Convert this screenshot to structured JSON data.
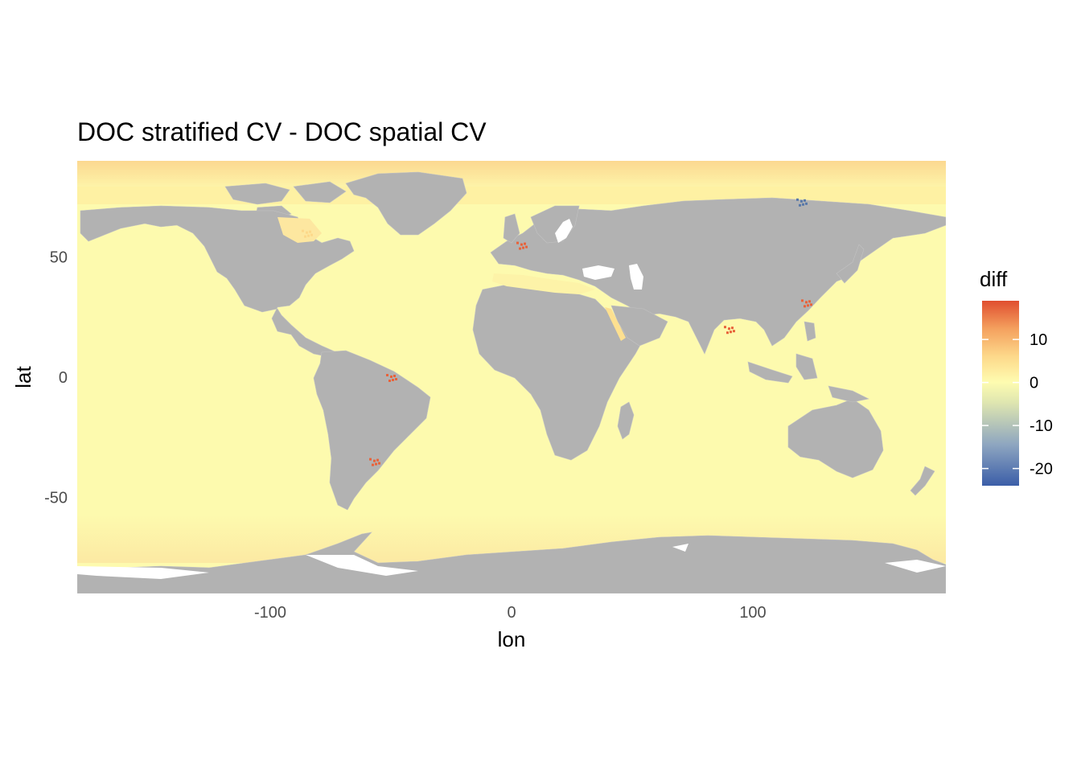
{
  "title": "DOC stratified CV - DOC spatial CV",
  "axes": {
    "x_label": "lon",
    "y_label": "lat",
    "x_ticks": [
      {
        "value": -100,
        "label": "-100"
      },
      {
        "value": 0,
        "label": "0"
      },
      {
        "value": 100,
        "label": "100"
      }
    ],
    "y_ticks": [
      {
        "value": 50,
        "label": "50"
      },
      {
        "value": 0,
        "label": "0"
      },
      {
        "value": -50,
        "label": "-50"
      }
    ],
    "x_range": [
      -180,
      180
    ],
    "y_range": [
      -90,
      90
    ]
  },
  "legend": {
    "title": "diff",
    "range": [
      -24,
      19
    ],
    "ticks": [
      {
        "value": 10,
        "label": "10"
      },
      {
        "value": 0,
        "label": "0"
      },
      {
        "value": -10,
        "label": "-10"
      },
      {
        "value": -20,
        "label": "-20"
      }
    ],
    "colors": [
      "#3b5ea8",
      "#8da5c0",
      "#dfe6b0",
      "#fefcb0",
      "#fdd88a",
      "#f4a05e",
      "#e04e2f"
    ]
  },
  "colors": {
    "ocean": "#fdfaae",
    "land": "#b2b2b2",
    "arctic_band": "#fce195",
    "no_data": "#ffffff",
    "hot_cell": "#e8623a",
    "cold_cell": "#5878a8"
  },
  "chart_data": {
    "type": "heatmap",
    "title": "DOC stratified CV - DOC spatial CV",
    "xlabel": "lon",
    "ylabel": "lat",
    "xlim": [
      -180,
      180
    ],
    "ylim": [
      -90,
      90
    ],
    "color_scale": {
      "name": "diff",
      "min": -24,
      "max": 19,
      "midpoint": 0
    },
    "legend_position": "right",
    "grid": false,
    "highlights": [
      {
        "region": "Arctic Ocean",
        "lat_min": 78,
        "lat_max": 90,
        "diff_approx": 4
      },
      {
        "region": "Siberian shelf",
        "lon": 120,
        "lat": 73,
        "diff_approx": -15
      },
      {
        "region": "Hudson Bay",
        "lon": -85,
        "lat": 60,
        "diff_approx": 4
      },
      {
        "region": "Amazon mouth",
        "lon": -50,
        "lat": 0,
        "diff_approx": 15
      },
      {
        "region": "Yangtze mouth",
        "lon": 122,
        "lat": 31,
        "diff_approx": 12
      },
      {
        "region": "Bay of Bengal",
        "lon": 90,
        "lat": 20,
        "diff_approx": 10
      },
      {
        "region": "Rio de la Plata",
        "lon": -57,
        "lat": -35,
        "diff_approx": 10
      },
      {
        "region": "North Sea",
        "lon": 4,
        "lat": 55,
        "diff_approx": 12
      },
      {
        "region": "Southern Ocean",
        "lat_min": -75,
        "lat_max": -60,
        "diff_approx": 2
      }
    ]
  }
}
